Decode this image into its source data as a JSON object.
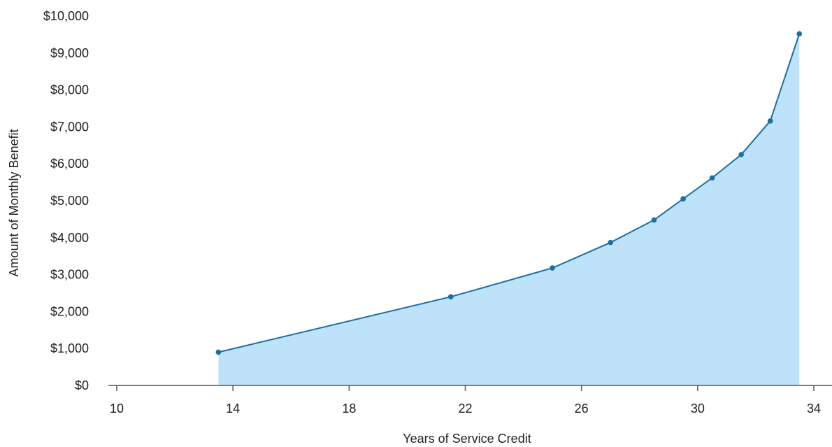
{
  "chart_data": {
    "type": "area",
    "title": "",
    "xlabel": "Years of Service Credit",
    "ylabel": "Amount of Monthly Benefit",
    "xlim": [
      10,
      34.2
    ],
    "ylim": [
      0,
      10000
    ],
    "x_ticks": [
      10,
      14,
      18,
      22,
      26,
      30,
      34
    ],
    "x_tick_labels": [
      "10",
      "14",
      "18",
      "22",
      "26",
      "30",
      "34"
    ],
    "y_ticks": [
      0,
      1000,
      2000,
      3000,
      4000,
      5000,
      6000,
      7000,
      8000,
      9000,
      10000
    ],
    "y_tick_labels": [
      "$0",
      "$1,000",
      "$2,000",
      "$3,000",
      "$4,000",
      "$5,000",
      "$6,000",
      "$7,000",
      "$8,000",
      "$9,000",
      "$10,000"
    ],
    "grid": false,
    "legend": "none",
    "series": [
      {
        "x": [
          13.5,
          21.5,
          25,
          27,
          28.5,
          29.5,
          30.5,
          31.5,
          32.5,
          33.5
        ],
        "values": [
          900,
          2400,
          3180,
          3870,
          4480,
          5050,
          5620,
          6250,
          7160,
          9520
        ]
      }
    ],
    "colors": {
      "line": "#1a6fa3",
      "fill": "#bfe2fb",
      "axis": "#555555"
    }
  }
}
